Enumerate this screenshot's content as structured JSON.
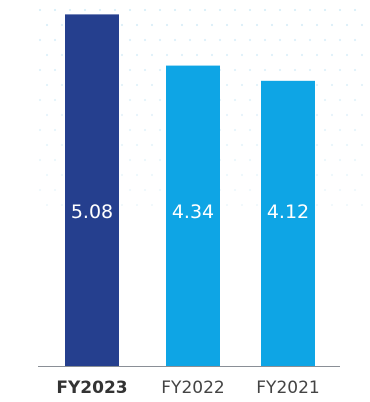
{
  "chart_data": {
    "type": "bar",
    "categories": [
      "FY2023",
      "FY2022",
      "FY2021"
    ],
    "values": [
      5.08,
      4.34,
      4.12
    ],
    "data_labels": [
      "5.08",
      "4.34",
      "4.12"
    ],
    "highlight_category": "FY2023",
    "title": "",
    "xlabel": "",
    "ylabel": "",
    "ylim": [
      0,
      5.1
    ],
    "grid": false,
    "legend": "none"
  },
  "colors": {
    "highlight": "#253f8e",
    "bar": "#0ea5e5",
    "axis": "#8a8f96",
    "dots": "#d8eef8"
  }
}
